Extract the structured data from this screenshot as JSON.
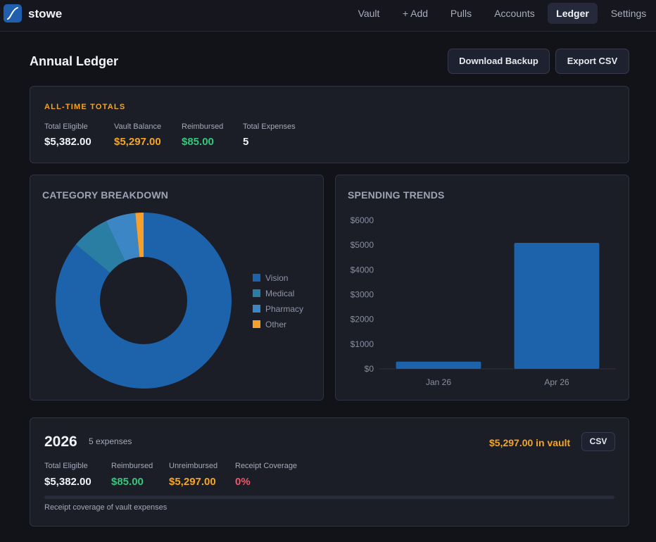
{
  "app": {
    "name": "stowe"
  },
  "nav": {
    "items": [
      {
        "label": "Vault",
        "active": false
      },
      {
        "label": "+ Add",
        "active": false
      },
      {
        "label": "Pulls",
        "active": false
      },
      {
        "label": "Accounts",
        "active": false
      },
      {
        "label": "Ledger",
        "active": true
      },
      {
        "label": "Settings",
        "active": false
      }
    ]
  },
  "page": {
    "title": "Annual Ledger",
    "download_label": "Download Backup",
    "export_label": "Export CSV"
  },
  "totals": {
    "heading": "ALL-TIME TOTALS",
    "stats": [
      {
        "label": "Total Eligible",
        "value": "$5,382.00",
        "color": "#f2f3f7"
      },
      {
        "label": "Vault Balance",
        "value": "$5,297.00",
        "color": "#f5a524"
      },
      {
        "label": "Reimbursed",
        "value": "$85.00",
        "color": "#34c77b"
      },
      {
        "label": "Total Expenses",
        "value": "5",
        "color": "#f2f3f7"
      }
    ]
  },
  "category": {
    "title": "CATEGORY BREAKDOWN",
    "chart_data": {
      "type": "pie",
      "variant": "donut",
      "slices": [
        {
          "label": "Vision",
          "value": 86,
          "color": "#1c63ab"
        },
        {
          "label": "Medical",
          "value": 7,
          "color": "#2a7ea3"
        },
        {
          "label": "Pharmacy",
          "value": 5.5,
          "color": "#3d86c6"
        },
        {
          "label": "Other",
          "value": 1.5,
          "color": "#f5a02c"
        }
      ],
      "legend_position": "right"
    }
  },
  "trends": {
    "title": "SPENDING TRENDS",
    "chart_data": {
      "type": "bar",
      "categories": [
        "Jan 26",
        "Apr 26"
      ],
      "values": [
        290,
        5090
      ],
      "ylim": [
        0,
        6000
      ],
      "yticks": [
        "$0",
        "$1000",
        "$2000",
        "$3000",
        "$4000",
        "$5000",
        "$6000"
      ],
      "bar_color": "#1c63ab",
      "grid": false
    }
  },
  "year_card": {
    "year": "2026",
    "count": "5 expenses",
    "vault_text": "$5,297.00 in vault",
    "csv_label": "CSV",
    "stats": [
      {
        "label": "Total Eligible",
        "value": "$5,382.00",
        "color": "#f2f3f7"
      },
      {
        "label": "Reimbursed",
        "value": "$85.00",
        "color": "#34c77b"
      },
      {
        "label": "Unreimbursed",
        "value": "$5,297.00",
        "color": "#f5a524"
      },
      {
        "label": "Receipt Coverage",
        "value": "0%",
        "color": "#f0566a"
      }
    ],
    "receipt_coverage_percent": 0,
    "note": "Receipt coverage of vault expenses"
  }
}
